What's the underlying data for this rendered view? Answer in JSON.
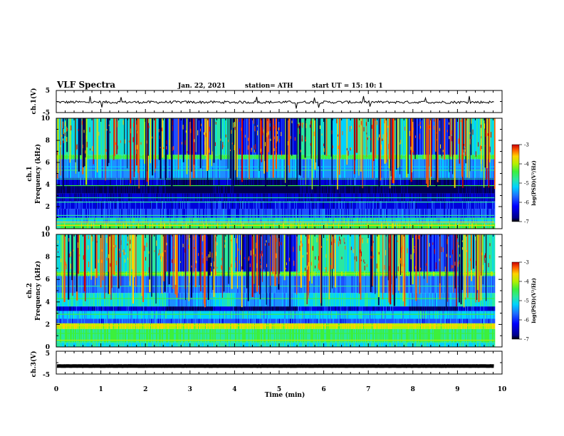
{
  "header": {
    "title": "VLF Spectra",
    "date": "Jan. 22, 2021",
    "station": "station= ATH",
    "start": "start  UT =   15: 10: 1"
  },
  "colors": {
    "axis": "#000000",
    "trace": "#000000",
    "colormap": [
      "#00008c",
      "#0000ff",
      "#1e6bff",
      "#00d2ff",
      "#2ae8a0",
      "#3cf03c",
      "#b4f000",
      "#ffd200",
      "#ff5a00",
      "#c80000"
    ]
  },
  "chart_data": [
    {
      "type": "line",
      "name": "ch1-voltage",
      "ylabel": "ch.1(V)",
      "ylim": [
        -5,
        5
      ],
      "yticks": [
        "5",
        "-5"
      ],
      "xlim": [
        0,
        10
      ],
      "baseline": -0.3,
      "noise": 0.6
    },
    {
      "type": "heatmap",
      "name": "ch1-spectrogram",
      "ylabel": "ch.1\nFrequency (kHz)",
      "xlim": [
        0,
        10
      ],
      "ylim": [
        0,
        10
      ],
      "yticks": [
        "0",
        "2",
        "4",
        "6",
        "8",
        "10"
      ],
      "data_end_min": 9.83,
      "colorbar": {
        "label": "log(PSD)(V²/Hz)",
        "range": [
          -7,
          -3
        ],
        "ticks": [
          "-3",
          "-4",
          "-5",
          "-6",
          "-7"
        ]
      }
    },
    {
      "type": "heatmap",
      "name": "ch2-spectrogram",
      "ylabel": "ch.2\nFrequency (kHz)",
      "xlim": [
        0,
        10
      ],
      "ylim": [
        0,
        10
      ],
      "yticks": [
        "0",
        "2",
        "4",
        "6",
        "8",
        "10"
      ],
      "data_end_min": 9.83,
      "colorbar": {
        "label": "log(PSD)(V²/Hz)",
        "range": [
          -7,
          -3
        ],
        "ticks": [
          "-3",
          "-4",
          "-5",
          "-6",
          "-7"
        ]
      }
    },
    {
      "type": "line",
      "name": "ch3-voltage",
      "ylabel": "ch.3(V)",
      "ylim": [
        -5,
        5
      ],
      "yticks": [
        "5",
        "-5"
      ],
      "xlim": [
        0,
        10
      ],
      "baseline": -1.5,
      "noise": 0.05,
      "xlabel": "Time  (min)",
      "xticks": [
        "0",
        "1",
        "2",
        "3",
        "4",
        "5",
        "6",
        "7",
        "8",
        "9",
        "10"
      ]
    }
  ]
}
